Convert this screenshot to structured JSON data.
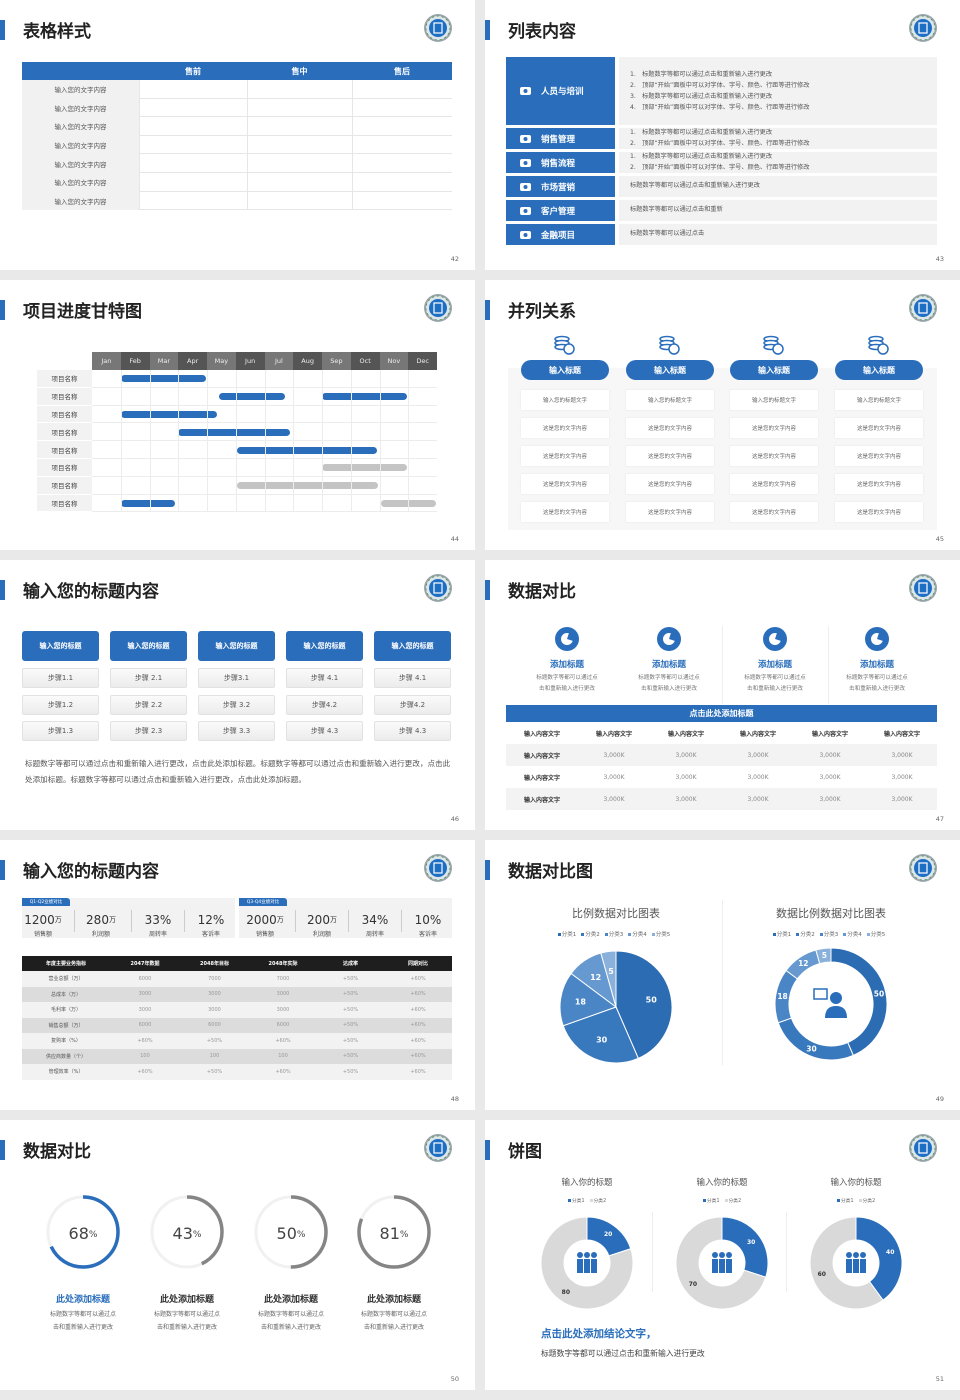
{
  "colors": {
    "blue": "#2a6ebb",
    "gray_bar": "#c4c4c4",
    "dark": "#222222",
    "panel": "#f2f2f2"
  },
  "slides": {
    "s42": {
      "title": "表格样式",
      "page": "42",
      "headers": [
        "售前",
        "售中",
        "售后"
      ],
      "row_labels": [
        "输入您的文字内容",
        "输入您的文字内容",
        "输入您的文字内容",
        "输入您的文字内容",
        "输入您的文字内容",
        "输入您的文字内容",
        "输入您的文字内容"
      ]
    },
    "s43": {
      "title": "列表内容",
      "page": "43",
      "items": [
        {
          "label": "人员与培训",
          "icon": "training-icon",
          "lines": [
            "1.　标题数字等都可以通过点击和重新输入进行更改",
            "2.　顶部“开始”面板中可以对字体、字号、颜色、行距等进行修改",
            "3.　标题数字等都可以通过点击和重新输入进行更改",
            "4.　顶部“开始”面板中可以对字体、字号、颜色、行距等进行修改"
          ]
        },
        {
          "label": "销售管理",
          "icon": "user-gear-icon",
          "lines": [
            "1.　标题数字等都可以通过点击和重新输入进行更改",
            "2.　顶部“开始”面板中可以对字体、字号、颜色、行距等进行修改"
          ]
        },
        {
          "label": "销售流程",
          "icon": "cycle-icon",
          "lines": [
            "1.　标题数字等都可以通过点击和重新输入进行更改",
            "2.　顶部“开始”面板中可以对字体、字号、颜色、行距等进行修改"
          ]
        },
        {
          "label": "市场营销",
          "icon": "bar-chart-icon",
          "lines": [
            "标题数字等都可以通过点击和重新输入进行更改"
          ]
        },
        {
          "label": "客户管理",
          "icon": "users-icon",
          "lines": [
            "标题数字等都可以通过点击和重新"
          ]
        },
        {
          "label": "金融项目",
          "icon": "finance-hand-icon",
          "lines": [
            "标题数字等都可以通过点击"
          ]
        }
      ]
    },
    "s44": {
      "title": "项目进度甘特图",
      "page": "44",
      "months": [
        "Jan",
        "Feb",
        "Mar",
        "Apr",
        "May",
        "Jun",
        "Jul",
        "Aug",
        "Sep",
        "Oct",
        "Nov",
        "Dec"
      ],
      "rows": [
        {
          "label": "项目名称",
          "bars": [
            {
              "start": 1.0,
              "end": 3.95,
              "status": "active"
            }
          ]
        },
        {
          "label": "项目名称",
          "bars": [
            {
              "start": 4.4,
              "end": 6.7,
              "status": "active"
            },
            {
              "start": 8.0,
              "end": 10.95,
              "status": "active"
            }
          ]
        },
        {
          "label": "项目名称",
          "bars": [
            {
              "start": 1.0,
              "end": 4.35,
              "status": "active"
            }
          ]
        },
        {
          "label": "项目名称",
          "bars": [
            {
              "start": 3.0,
              "end": 6.9,
              "status": "active"
            }
          ]
        },
        {
          "label": "项目名称",
          "bars": [
            {
              "start": 5.05,
              "end": 9.9,
              "status": "active"
            }
          ]
        },
        {
          "label": "项目名称",
          "bars": [
            {
              "start": 8.0,
              "end": 10.95,
              "status": "planned"
            }
          ]
        },
        {
          "label": "项目名称",
          "bars": [
            {
              "start": 5.05,
              "end": 9.95,
              "status": "planned"
            }
          ]
        },
        {
          "label": "项目名称",
          "bars": [
            {
              "start": 1.0,
              "end": 2.9,
              "status": "active"
            },
            {
              "start": 10.05,
              "end": 11.95,
              "status": "planned"
            }
          ]
        }
      ]
    },
    "s45": {
      "title": "并列关系",
      "page": "45",
      "columns": [
        {
          "title": "输入标题",
          "icon": "coin-stack-icon",
          "cells": [
            "输入您的标题文字",
            "这是您的文字内容",
            "这是您的文字内容",
            "这是您的文字内容",
            "这是您的文字内容"
          ]
        },
        {
          "title": "输入标题",
          "icon": "coin-stack-icon",
          "cells": [
            "输入您的标题文字",
            "这是您的文字内容",
            "这是您的文字内容",
            "这是您的文字内容",
            "这是您的文字内容"
          ]
        },
        {
          "title": "输入标题",
          "icon": "coin-stack-icon",
          "cells": [
            "输入您的标题文字",
            "这是您的文字内容",
            "这是您的文字内容",
            "这是您的文字内容",
            "这是您的文字内容"
          ]
        },
        {
          "title": "输入标题",
          "icon": "coin-stack-icon",
          "cells": [
            "输入您的标题文字",
            "这是您的文字内容",
            "这是您的文字内容",
            "这是您的文字内容",
            "这是您的文字内容"
          ]
        }
      ]
    },
    "s46": {
      "title": "输入您的标题内容",
      "page": "46",
      "columns": [
        {
          "title": "输入您的标题",
          "steps": [
            "步骤1.1",
            "步骤1.2",
            "步骤1.3"
          ]
        },
        {
          "title": "输入您的标题",
          "steps": [
            "步骤 2.1",
            "步骤 2.2",
            "步骤 2.3"
          ]
        },
        {
          "title": "输入您的标题",
          "steps": [
            "步骤3.1",
            "步骤 3.2",
            "步骤 3.3"
          ]
        },
        {
          "title": "输入您的标题",
          "steps": [
            "步骤 4.1",
            "步骤4.2",
            "步骤 4.3"
          ]
        },
        {
          "title": "输入您的标题",
          "steps": [
            "步骤 4.1",
            "步骤4.2",
            "步骤 4.3"
          ]
        }
      ],
      "paragraph": "标题数字等都可以通过点击和重新输入进行更改，点击此处添加标题。标题数字等都可以通过点击和重新输入进行更改，点击此处添加标题。标题数字等都可以通过点击和重新输入进行更改，点击此处添加标题。"
    },
    "s47": {
      "title": "数据对比",
      "page": "47",
      "features": [
        {
          "title": "添加标题",
          "icon": "pie-chart-icon",
          "desc": [
            "标题数字等都可以通过点",
            "击和重新输入进行更改"
          ]
        },
        {
          "title": "添加标题",
          "icon": "pie-chart-icon",
          "desc": [
            "标题数字等都可以通过点",
            "击和重新输入进行更改"
          ]
        },
        {
          "title": "添加标题",
          "icon": "pie-chart-icon",
          "desc": [
            "标题数字等都可以通过点",
            "击和重新输入进行更改"
          ]
        },
        {
          "title": "添加标题",
          "icon": "pie-chart-icon",
          "desc": [
            "标题数字等都可以通过点",
            "击和重新输入进行更改"
          ]
        }
      ],
      "table_title": "点击此处添加标题",
      "table_header": [
        "输入内容文字",
        "输入内容文字",
        "输入内容文字",
        "输入内容文字",
        "输入内容文字",
        "输入内容文字"
      ],
      "rows": [
        [
          "输入内容文字",
          "3,000K",
          "3,000K",
          "3,000K",
          "3,000K",
          "3,000K"
        ],
        [
          "输入内容文字",
          "3,000K",
          "3,000K",
          "3,000K",
          "3,000K",
          "3,000K"
        ],
        [
          "输入内容文字",
          "3,000K",
          "3,000K",
          "3,000K",
          "3,000K",
          "3,000K"
        ]
      ]
    },
    "s48": {
      "title": "输入您的标题内容",
      "page": "48",
      "panels": [
        {
          "tag": "Q1-Q2业绩对比",
          "stats": [
            {
              "value": "1200",
              "unit": "万",
              "label": "销售额"
            },
            {
              "value": "280",
              "unit": "万",
              "label": "利润额"
            },
            {
              "value": "33%",
              "unit": "",
              "label": "周转率"
            },
            {
              "value": "12%",
              "unit": "",
              "label": "客诉率"
            }
          ]
        },
        {
          "tag": "Q3-Q4业绩对比",
          "stats": [
            {
              "value": "2000",
              "unit": "万",
              "label": "销售额"
            },
            {
              "value": "200",
              "unit": "万",
              "label": "利润额"
            },
            {
              "value": "34%",
              "unit": "",
              "label": "周转率"
            },
            {
              "value": "10%",
              "unit": "",
              "label": "客诉率"
            }
          ]
        }
      ],
      "table": {
        "headers": [
          "年度主要业务指标",
          "2047年数据",
          "2048年目标",
          "2048年实际",
          "达成率",
          "同期对比"
        ],
        "rows": [
          [
            "营业总额（万）",
            "6000",
            "7000",
            "7000",
            "+50%",
            "+60%"
          ],
          [
            "总成本（万）",
            "3000",
            "3000",
            "3000",
            "+50%",
            "+60%"
          ],
          [
            "毛利率（万）",
            "3000",
            "3000",
            "3000",
            "+50%",
            "+60%"
          ],
          [
            "销售总额（万）",
            "6000",
            "6000",
            "6000",
            "+50%",
            "+60%"
          ],
          [
            "复购率（%）",
            "+60%",
            "+50%",
            "+60%",
            "+50%",
            "+60%"
          ],
          [
            "供应商数量（个）",
            "100",
            "100",
            "100",
            "+50%",
            "+60%"
          ],
          [
            "管理效率（%）",
            "+60%",
            "+50%",
            "+60%",
            "+50%",
            "+60%"
          ]
        ]
      }
    },
    "s49": {
      "title": "数据对比图",
      "page": "49"
    },
    "s50": {
      "title": "数据对比",
      "page": "50",
      "items": [
        {
          "value": 68,
          "unit": "%",
          "title": "此处添加标题",
          "highlight": true,
          "desc": [
            "标题数字等都可以通过点",
            "击和重新输入进行更改"
          ]
        },
        {
          "value": 43,
          "unit": "%",
          "title": "此处添加标题",
          "highlight": false,
          "desc": [
            "标题数字等都可以通过点",
            "击和重新输入进行更改"
          ]
        },
        {
          "value": 50,
          "unit": "%",
          "title": "此处添加标题",
          "highlight": false,
          "desc": [
            "标题数字等都可以通过点",
            "击和重新输入进行更改"
          ]
        },
        {
          "value": 81,
          "unit": "%",
          "title": "此处添加标题",
          "highlight": false,
          "desc": [
            "标题数字等都可以通过点",
            "击和重新输入进行更改"
          ]
        }
      ]
    },
    "s51": {
      "title": "饼图",
      "page": "51",
      "conclusion": "点击此处添加结论文字，",
      "desc": "标题数字等都可以通过点击和重新输入进行更改"
    }
  },
  "chart_data": [
    {
      "type": "pie",
      "title": "比例数据对比图表",
      "categories": [
        "分类1",
        "分类2",
        "分类3",
        "分类4",
        "分类5"
      ],
      "values": [
        50,
        30,
        18,
        12,
        5
      ],
      "legend": "top",
      "colors": [
        "#2b6cb3",
        "#3878bd",
        "#4a86c6",
        "#6699cf",
        "#8ab1db"
      ]
    },
    {
      "type": "pie",
      "donut": true,
      "title": "数据比例数据对比图表",
      "categories": [
        "分类1",
        "分类2",
        "分类3",
        "分类4",
        "分类5"
      ],
      "values": [
        50,
        30,
        18,
        12,
        5
      ],
      "legend": "top",
      "colors": [
        "#2b6cb3",
        "#3878bd",
        "#4a86c6",
        "#6699cf",
        "#8ab1db"
      ]
    },
    {
      "type": "pie",
      "donut": true,
      "title": "输入你的标题",
      "categories": [
        "分类1",
        "分类2"
      ],
      "values": [
        20,
        80
      ],
      "legend": "top",
      "colors": [
        "#2a6ebb",
        "#d9d9d9"
      ]
    },
    {
      "type": "pie",
      "donut": true,
      "title": "输入你的标题",
      "categories": [
        "分类1",
        "分类2"
      ],
      "values": [
        30,
        70
      ],
      "legend": "top",
      "colors": [
        "#2a6ebb",
        "#d9d9d9"
      ]
    },
    {
      "type": "pie",
      "donut": true,
      "title": "输入你的标题",
      "categories": [
        "分类1",
        "分类2"
      ],
      "values": [
        40,
        60
      ],
      "legend": "top",
      "colors": [
        "#2a6ebb",
        "#d9d9d9"
      ]
    }
  ]
}
